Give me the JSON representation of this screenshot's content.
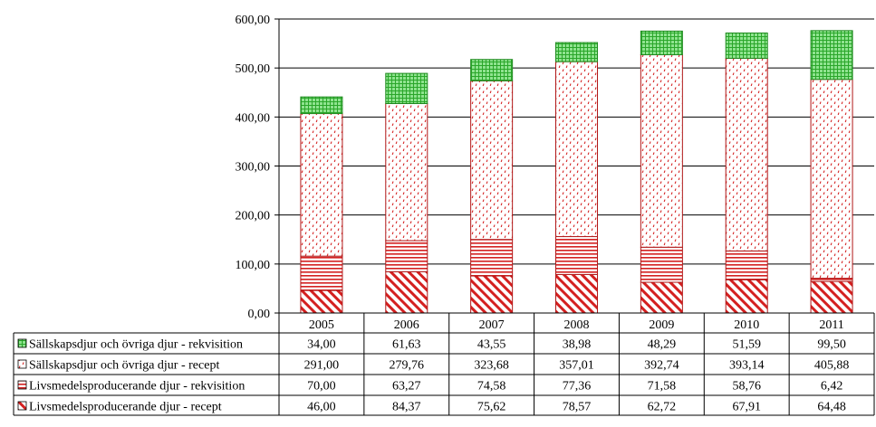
{
  "chart_data": {
    "type": "bar",
    "stacked": true,
    "categories": [
      "2005",
      "2006",
      "2007",
      "2008",
      "2009",
      "2010",
      "2011"
    ],
    "series": [
      {
        "name": "Livsmedelsproducerande djur - recept",
        "values": [
          "46,00",
          "84,37",
          "75,62",
          "78,57",
          "62,72",
          "67,91",
          "64,48"
        ],
        "color": "#d42020",
        "pattern": "diagonal-hatch"
      },
      {
        "name": "Livsmedelsproducerande djur - rekvisition",
        "values": [
          "70,00",
          "63,27",
          "74,58",
          "77,36",
          "71,58",
          "58,76",
          "6,42"
        ],
        "color": "#d42020",
        "pattern": "horizontal-lines"
      },
      {
        "name": "Sällskapsdjur och övriga djur - recept",
        "values": [
          "291,00",
          "279,76",
          "323,68",
          "357,01",
          "392,74",
          "393,14",
          "405,88"
        ],
        "color": "#d42020",
        "pattern": "dotted-dashes"
      },
      {
        "name": "Sällskapsdjur och övriga djur - rekvisition",
        "values": [
          "34,00",
          "61,63",
          "43,55",
          "38,98",
          "48,29",
          "51,59",
          "99,50"
        ],
        "color": "#2fb52f",
        "pattern": "green-grid"
      }
    ],
    "legend_order": [
      3,
      2,
      1,
      0
    ],
    "y_ticks": [
      "0,00",
      "100,00",
      "200,00",
      "300,00",
      "400,00",
      "500,00",
      "600,00"
    ],
    "ylim": [
      0,
      600
    ],
    "grid": true,
    "legend": "data-table"
  }
}
